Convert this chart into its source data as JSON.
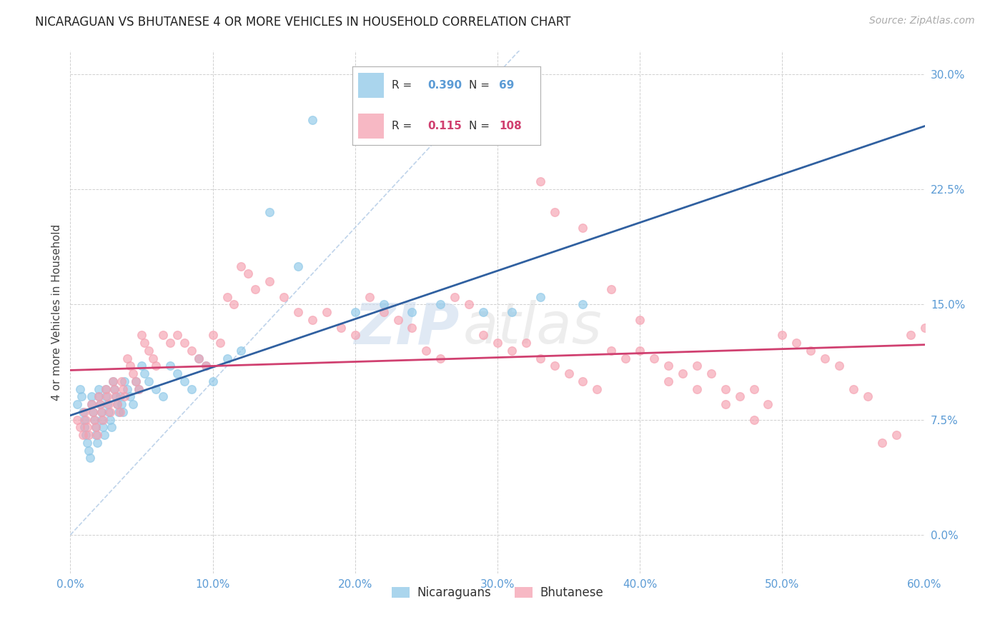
{
  "title": "NICARAGUAN VS BHUTANESE 4 OR MORE VEHICLES IN HOUSEHOLD CORRELATION CHART",
  "source": "Source: ZipAtlas.com",
  "ylabel": "4 or more Vehicles in Household",
  "xlabel_ticks": [
    "0.0%",
    "10.0%",
    "20.0%",
    "30.0%",
    "40.0%",
    "50.0%",
    "60.0%"
  ],
  "xlabel_vals": [
    0.0,
    0.1,
    0.2,
    0.3,
    0.4,
    0.5,
    0.6
  ],
  "ylabel_ticks": [
    "0.0%",
    "7.5%",
    "15.0%",
    "22.5%",
    "30.0%"
  ],
  "ylabel_vals": [
    0.0,
    0.075,
    0.15,
    0.225,
    0.3
  ],
  "xlim": [
    0.0,
    0.6
  ],
  "ylim": [
    -0.025,
    0.315
  ],
  "nicaraguan_color": "#8ec8e8",
  "bhutanese_color": "#f5a0b0",
  "regression_line_blue": "#3060a0",
  "regression_line_pink": "#d04070",
  "diagonal_color": "#b8cfe8",
  "watermark_zip": "ZIP",
  "watermark_atlas": "atlas",
  "legend_entries": [
    "Nicaraguans",
    "Bhutanese"
  ],
  "nicaraguan_x": [
    0.005,
    0.007,
    0.008,
    0.009,
    0.01,
    0.01,
    0.011,
    0.012,
    0.013,
    0.014,
    0.015,
    0.015,
    0.016,
    0.017,
    0.018,
    0.018,
    0.019,
    0.02,
    0.02,
    0.021,
    0.022,
    0.022,
    0.023,
    0.024,
    0.025,
    0.025,
    0.026,
    0.027,
    0.028,
    0.029,
    0.03,
    0.031,
    0.032,
    0.033,
    0.034,
    0.035,
    0.036,
    0.037,
    0.038,
    0.04,
    0.042,
    0.044,
    0.046,
    0.048,
    0.05,
    0.052,
    0.055,
    0.06,
    0.065,
    0.07,
    0.075,
    0.08,
    0.085,
    0.09,
    0.095,
    0.1,
    0.11,
    0.12,
    0.14,
    0.16,
    0.17,
    0.2,
    0.22,
    0.24,
    0.26,
    0.29,
    0.31,
    0.33,
    0.36
  ],
  "nicaraguan_y": [
    0.085,
    0.095,
    0.09,
    0.08,
    0.075,
    0.07,
    0.065,
    0.06,
    0.055,
    0.05,
    0.09,
    0.085,
    0.08,
    0.075,
    0.07,
    0.065,
    0.06,
    0.095,
    0.09,
    0.085,
    0.08,
    0.075,
    0.07,
    0.065,
    0.095,
    0.09,
    0.085,
    0.08,
    0.075,
    0.07,
    0.1,
    0.095,
    0.09,
    0.085,
    0.08,
    0.09,
    0.085,
    0.08,
    0.1,
    0.095,
    0.09,
    0.085,
    0.1,
    0.095,
    0.11,
    0.105,
    0.1,
    0.095,
    0.09,
    0.11,
    0.105,
    0.1,
    0.095,
    0.115,
    0.11,
    0.1,
    0.115,
    0.12,
    0.21,
    0.175,
    0.27,
    0.145,
    0.15,
    0.145,
    0.15,
    0.145,
    0.145,
    0.155,
    0.15
  ],
  "bhutanese_x": [
    0.005,
    0.007,
    0.009,
    0.01,
    0.011,
    0.012,
    0.013,
    0.015,
    0.016,
    0.017,
    0.018,
    0.019,
    0.02,
    0.021,
    0.022,
    0.023,
    0.025,
    0.026,
    0.027,
    0.028,
    0.03,
    0.031,
    0.032,
    0.033,
    0.035,
    0.036,
    0.037,
    0.038,
    0.04,
    0.042,
    0.044,
    0.046,
    0.048,
    0.05,
    0.052,
    0.055,
    0.058,
    0.06,
    0.065,
    0.07,
    0.075,
    0.08,
    0.085,
    0.09,
    0.095,
    0.1,
    0.105,
    0.11,
    0.115,
    0.12,
    0.125,
    0.13,
    0.14,
    0.15,
    0.16,
    0.17,
    0.18,
    0.19,
    0.2,
    0.21,
    0.22,
    0.23,
    0.24,
    0.25,
    0.26,
    0.27,
    0.28,
    0.29,
    0.3,
    0.31,
    0.32,
    0.33,
    0.34,
    0.35,
    0.36,
    0.37,
    0.38,
    0.39,
    0.4,
    0.41,
    0.42,
    0.43,
    0.44,
    0.45,
    0.46,
    0.47,
    0.48,
    0.49,
    0.5,
    0.51,
    0.52,
    0.53,
    0.54,
    0.55,
    0.56,
    0.57,
    0.58,
    0.59,
    0.6,
    0.33,
    0.34,
    0.36,
    0.38,
    0.4,
    0.42,
    0.44,
    0.46,
    0.48
  ],
  "bhutanese_y": [
    0.075,
    0.07,
    0.065,
    0.08,
    0.075,
    0.07,
    0.065,
    0.085,
    0.08,
    0.075,
    0.07,
    0.065,
    0.09,
    0.085,
    0.08,
    0.075,
    0.095,
    0.09,
    0.085,
    0.08,
    0.1,
    0.095,
    0.09,
    0.085,
    0.08,
    0.1,
    0.095,
    0.09,
    0.115,
    0.11,
    0.105,
    0.1,
    0.095,
    0.13,
    0.125,
    0.12,
    0.115,
    0.11,
    0.13,
    0.125,
    0.13,
    0.125,
    0.12,
    0.115,
    0.11,
    0.13,
    0.125,
    0.155,
    0.15,
    0.175,
    0.17,
    0.16,
    0.165,
    0.155,
    0.145,
    0.14,
    0.145,
    0.135,
    0.13,
    0.155,
    0.145,
    0.14,
    0.135,
    0.12,
    0.115,
    0.155,
    0.15,
    0.13,
    0.125,
    0.12,
    0.125,
    0.115,
    0.11,
    0.105,
    0.1,
    0.095,
    0.12,
    0.115,
    0.12,
    0.115,
    0.11,
    0.105,
    0.11,
    0.105,
    0.095,
    0.09,
    0.095,
    0.085,
    0.13,
    0.125,
    0.12,
    0.115,
    0.11,
    0.095,
    0.09,
    0.06,
    0.065,
    0.13,
    0.135,
    0.23,
    0.21,
    0.2,
    0.16,
    0.14,
    0.1,
    0.095,
    0.085,
    0.075
  ]
}
